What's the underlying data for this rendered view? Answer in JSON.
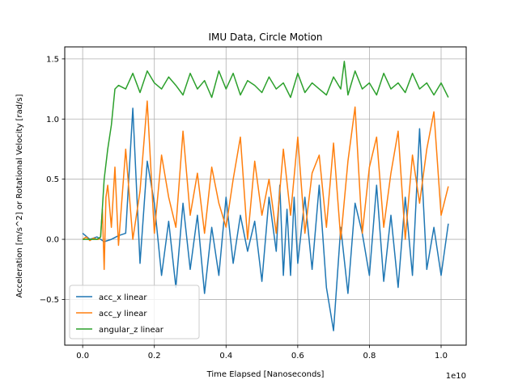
{
  "chart_data": {
    "type": "line",
    "title": "IMU Data, Circle  Motion",
    "xlabel": "Time Elapsed [Nanoseconds]",
    "ylabel": "Acceleration [m/s^2] or Rotational Velocity [rad/s]",
    "x_offset_label": "1e10",
    "xlim": [
      -0.05,
      1.07
    ],
    "ylim": [
      -0.88,
      1.6
    ],
    "xticks": [
      0.0,
      0.2,
      0.4,
      0.6,
      0.8,
      1.0
    ],
    "xtick_labels": [
      "0.0",
      "0.2",
      "0.4",
      "0.6",
      "0.8",
      "1.0"
    ],
    "yticks": [
      -0.5,
      0.0,
      0.5,
      1.0,
      1.5
    ],
    "ytick_labels": [
      "−0.5",
      "0.0",
      "0.5",
      "1.0",
      "1.5"
    ],
    "grid": true,
    "legend_position": "lower-left",
    "series": [
      {
        "name": "acc_x linear",
        "color": "#1f77b4",
        "x": [
          0.0,
          0.02,
          0.04,
          0.06,
          0.08,
          0.1,
          0.12,
          0.14,
          0.16,
          0.18,
          0.2,
          0.22,
          0.24,
          0.26,
          0.28,
          0.3,
          0.32,
          0.34,
          0.36,
          0.38,
          0.4,
          0.42,
          0.44,
          0.46,
          0.48,
          0.5,
          0.52,
          0.54,
          0.55,
          0.56,
          0.57,
          0.58,
          0.59,
          0.6,
          0.62,
          0.64,
          0.66,
          0.68,
          0.7,
          0.72,
          0.74,
          0.76,
          0.78,
          0.8,
          0.82,
          0.84,
          0.86,
          0.88,
          0.9,
          0.92,
          0.94,
          0.96,
          0.98,
          1.0,
          1.02
        ],
        "y": [
          0.05,
          0.0,
          0.02,
          -0.02,
          0.0,
          0.03,
          0.05,
          1.09,
          -0.2,
          0.65,
          0.3,
          -0.3,
          0.15,
          -0.4,
          0.3,
          -0.25,
          0.2,
          -0.45,
          0.1,
          -0.3,
          0.35,
          -0.2,
          0.2,
          -0.1,
          0.15,
          -0.35,
          0.35,
          -0.1,
          0.45,
          -0.3,
          0.25,
          -0.3,
          0.35,
          -0.2,
          0.35,
          -0.25,
          0.45,
          -0.4,
          -0.76,
          0.1,
          -0.45,
          0.3,
          0.05,
          -0.3,
          0.45,
          -0.35,
          0.2,
          -0.4,
          0.35,
          -0.3,
          0.92,
          -0.25,
          0.1,
          -0.3,
          0.13
        ]
      },
      {
        "name": "acc_y linear",
        "color": "#ff7f0e",
        "x": [
          0.0,
          0.01,
          0.02,
          0.03,
          0.04,
          0.045,
          0.05,
          0.055,
          0.06,
          0.065,
          0.07,
          0.08,
          0.09,
          0.1,
          0.12,
          0.14,
          0.16,
          0.18,
          0.2,
          0.22,
          0.24,
          0.26,
          0.28,
          0.3,
          0.32,
          0.34,
          0.36,
          0.38,
          0.4,
          0.42,
          0.44,
          0.46,
          0.48,
          0.5,
          0.52,
          0.54,
          0.56,
          0.58,
          0.6,
          0.62,
          0.64,
          0.66,
          0.68,
          0.7,
          0.72,
          0.74,
          0.76,
          0.78,
          0.8,
          0.82,
          0.84,
          0.86,
          0.88,
          0.9,
          0.92,
          0.94,
          0.96,
          0.98,
          1.0,
          1.02
        ],
        "y": [
          0.0,
          0.02,
          -0.01,
          0.01,
          0.0,
          0.0,
          0.02,
          0.25,
          -0.25,
          0.35,
          0.45,
          0.1,
          0.6,
          -0.05,
          0.75,
          0.0,
          0.4,
          1.15,
          0.05,
          0.7,
          0.35,
          0.1,
          0.9,
          0.2,
          0.55,
          0.05,
          0.6,
          0.3,
          0.1,
          0.5,
          0.85,
          0.0,
          0.65,
          0.2,
          0.5,
          0.05,
          0.75,
          0.2,
          0.85,
          0.05,
          0.55,
          0.7,
          0.1,
          0.8,
          0.0,
          0.65,
          1.1,
          0.05,
          0.6,
          0.85,
          0.1,
          0.55,
          0.9,
          0.0,
          0.7,
          0.3,
          0.75,
          1.06,
          0.2,
          0.44
        ]
      },
      {
        "name": "angular_z linear",
        "color": "#2ca02c",
        "x": [
          0.0,
          0.02,
          0.04,
          0.05,
          0.06,
          0.07,
          0.08,
          0.09,
          0.1,
          0.12,
          0.14,
          0.16,
          0.18,
          0.2,
          0.22,
          0.24,
          0.26,
          0.28,
          0.3,
          0.32,
          0.34,
          0.36,
          0.38,
          0.4,
          0.42,
          0.44,
          0.46,
          0.48,
          0.5,
          0.52,
          0.54,
          0.56,
          0.58,
          0.6,
          0.62,
          0.64,
          0.66,
          0.68,
          0.7,
          0.72,
          0.73,
          0.74,
          0.76,
          0.78,
          0.8,
          0.82,
          0.84,
          0.86,
          0.88,
          0.9,
          0.92,
          0.94,
          0.96,
          0.98,
          1.0,
          1.02
        ],
        "y": [
          0.0,
          0.0,
          0.0,
          0.02,
          0.5,
          0.75,
          0.95,
          1.25,
          1.28,
          1.25,
          1.38,
          1.22,
          1.4,
          1.3,
          1.25,
          1.35,
          1.28,
          1.2,
          1.38,
          1.25,
          1.32,
          1.18,
          1.4,
          1.25,
          1.38,
          1.2,
          1.32,
          1.28,
          1.22,
          1.35,
          1.25,
          1.3,
          1.18,
          1.38,
          1.22,
          1.3,
          1.25,
          1.2,
          1.35,
          1.25,
          1.48,
          1.2,
          1.4,
          1.25,
          1.3,
          1.2,
          1.38,
          1.25,
          1.3,
          1.22,
          1.38,
          1.25,
          1.3,
          1.2,
          1.3,
          1.18
        ]
      }
    ]
  }
}
